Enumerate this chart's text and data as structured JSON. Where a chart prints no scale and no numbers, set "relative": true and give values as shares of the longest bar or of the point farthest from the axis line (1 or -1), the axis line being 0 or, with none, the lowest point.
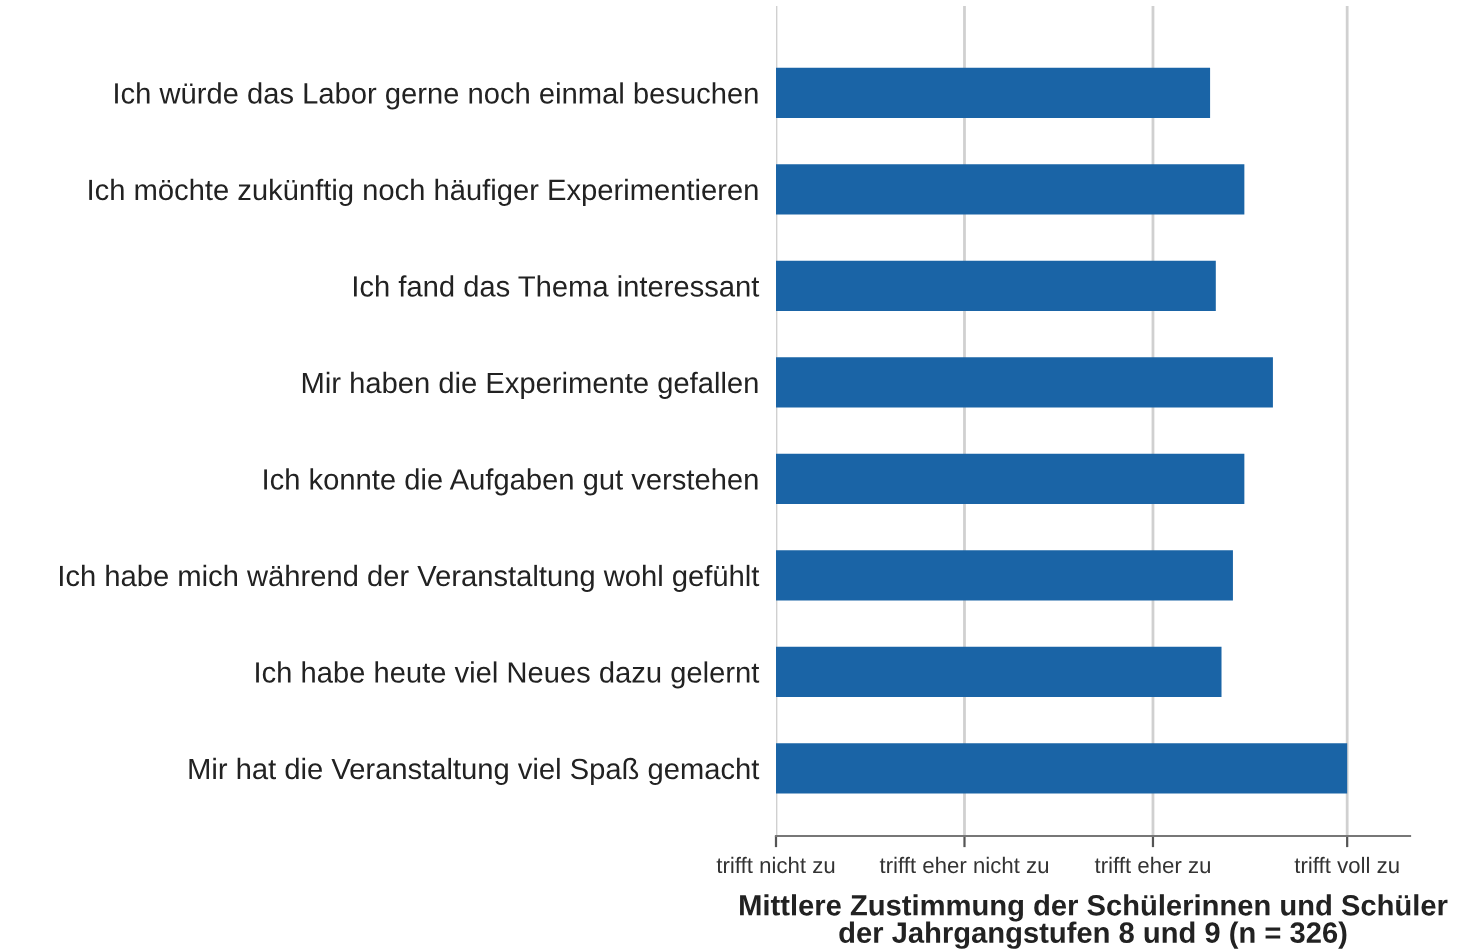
{
  "chart_data": {
    "type": "bar",
    "orientation": "horizontal",
    "categories": [
      "Ich würde das Labor gerne noch einmal besuchen",
      "Ich möchte zukünftig noch häufiger Experimentieren",
      "Ich fand das Thema interessant",
      "Mir haben die Experimente gefallen",
      "Ich konnte die Aufgaben gut verstehen",
      "Ich habe mich während der Veranstaltung wohl gefühlt",
      "Ich habe heute viel Neues dazu gelernt",
      "Mir hat die Veranstaltung viel Spaß gemacht"
    ],
    "values": [
      0.76,
      0.82,
      0.77,
      0.87,
      0.82,
      0.8,
      0.78,
      1.0
    ],
    "relative": true,
    "color": "#1a64a6",
    "ref_lines": [
      {
        "axis": "x",
        "value": 0,
        "label": "trifft nicht zu",
        "color": "#d0d0d0"
      },
      {
        "axis": "x",
        "value": 0.33,
        "label": "trifft eher nicht zu",
        "color": "#d0d0d0"
      },
      {
        "axis": "x",
        "value": 0.66,
        "label": "trifft eher zu",
        "color": "#d0d0d0"
      },
      {
        "axis": "x",
        "value": 1.0,
        "label": "trifft voll zu",
        "color": "#d0d0d0"
      }
    ],
    "xlabel": "Mittlere Zustimmung der Schülerinnen und Schüler\nder Jahrgangstufen 8 und 9 (n = 326)"
  }
}
